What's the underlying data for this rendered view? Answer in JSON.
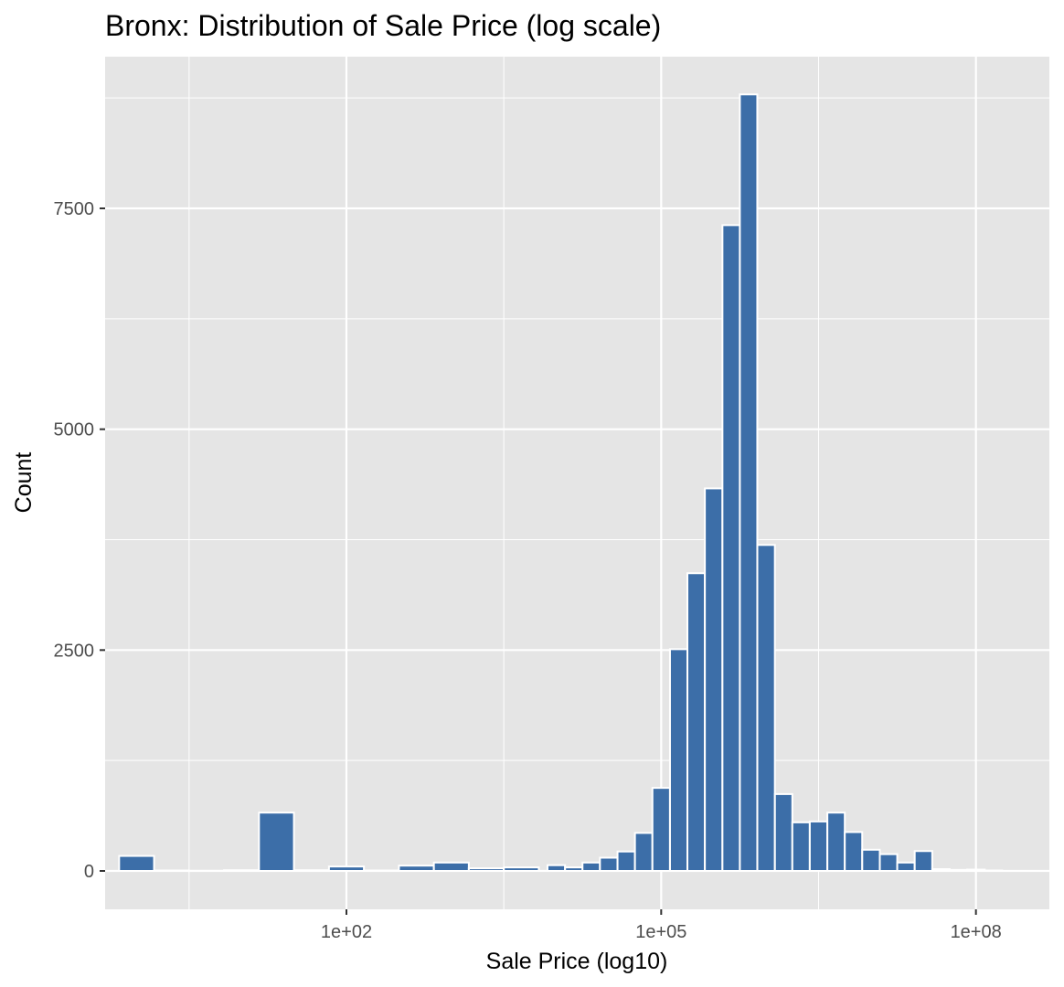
{
  "chart_data": {
    "type": "bar",
    "title": "Bronx: Distribution of Sale Price (log scale)",
    "xlabel": "Sale Price (log10)",
    "ylabel": "Count",
    "x_scale": "log10",
    "x_tick_labels": [
      "1e+02",
      "1e+05",
      "1e+08"
    ],
    "x_ticks": [
      2,
      5,
      8
    ],
    "y_ticks": [
      0,
      2500,
      5000,
      7500
    ],
    "ylim": [
      0,
      9000
    ],
    "xlim_log10": [
      -0.3,
      8.7
    ],
    "grid": true,
    "bar_color": "#3c6ea8",
    "bar_outline": "#ffffff",
    "panel_background": "#e5e5e5",
    "bins": [
      {
        "log10_price": 0.0,
        "count": 170
      },
      {
        "log10_price": 0.333,
        "count": 5
      },
      {
        "log10_price": 0.667,
        "count": 2
      },
      {
        "log10_price": 1.0,
        "count": 8
      },
      {
        "log10_price": 1.333,
        "count": 660
      },
      {
        "log10_price": 1.667,
        "count": 8
      },
      {
        "log10_price": 2.0,
        "count": 50
      },
      {
        "log10_price": 2.333,
        "count": 5
      },
      {
        "log10_price": 2.667,
        "count": 60
      },
      {
        "log10_price": 3.0,
        "count": 95
      },
      {
        "log10_price": 3.333,
        "count": 30
      },
      {
        "log10_price": 3.667,
        "count": 40
      },
      {
        "log10_price": 4.0,
        "count": 65
      },
      {
        "log10_price": 4.167,
        "count": 40
      },
      {
        "log10_price": 4.333,
        "count": 95
      },
      {
        "log10_price": 4.5,
        "count": 150
      },
      {
        "log10_price": 4.667,
        "count": 220
      },
      {
        "log10_price": 4.833,
        "count": 430
      },
      {
        "log10_price": 5.0,
        "count": 940
      },
      {
        "log10_price": 5.167,
        "count": 2510
      },
      {
        "log10_price": 5.333,
        "count": 3370
      },
      {
        "log10_price": 5.5,
        "count": 4330
      },
      {
        "log10_price": 5.667,
        "count": 7310
      },
      {
        "log10_price": 5.833,
        "count": 8790
      },
      {
        "log10_price": 6.0,
        "count": 3690
      },
      {
        "log10_price": 6.167,
        "count": 870
      },
      {
        "log10_price": 6.333,
        "count": 550
      },
      {
        "log10_price": 6.5,
        "count": 560
      },
      {
        "log10_price": 6.667,
        "count": 660
      },
      {
        "log10_price": 6.833,
        "count": 440
      },
      {
        "log10_price": 7.0,
        "count": 240
      },
      {
        "log10_price": 7.167,
        "count": 190
      },
      {
        "log10_price": 7.333,
        "count": 95
      },
      {
        "log10_price": 7.5,
        "count": 225
      },
      {
        "log10_price": 7.667,
        "count": 20
      },
      {
        "log10_price": 7.833,
        "count": 12
      },
      {
        "log10_price": 8.0,
        "count": 15
      },
      {
        "log10_price": 8.167,
        "count": 5
      }
    ]
  }
}
